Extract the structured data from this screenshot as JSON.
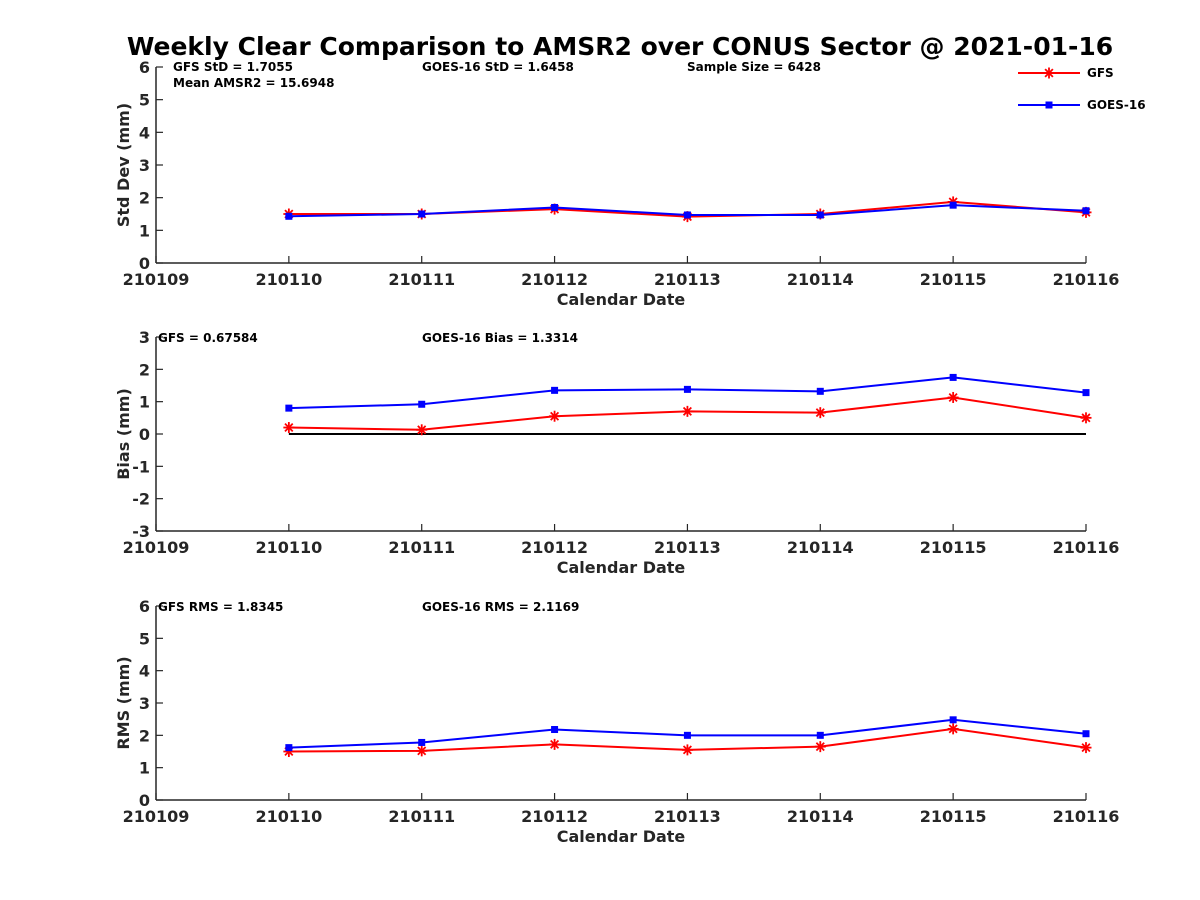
{
  "title": "Weekly Clear Comparison to AMSR2 over CONUS Sector @ 2021-01-16",
  "colors": {
    "gfs": "#ff0000",
    "goes": "#0000ff",
    "zero_line": "#000000"
  },
  "legend": [
    {
      "name": "GFS",
      "marker": "asterisk"
    },
    {
      "name": "GOES-16",
      "marker": "square"
    }
  ],
  "chart_data": [
    {
      "type": "line",
      "xlabel": "Calendar Date",
      "ylabel": "Std Dev (mm)",
      "ylim": [
        0,
        6
      ],
      "yticks": [
        "0",
        "1",
        "2",
        "3",
        "4",
        "5",
        "6"
      ],
      "xticks": [
        "210109",
        "210110",
        "210111",
        "210112",
        "210113",
        "210114",
        "210115",
        "210116"
      ],
      "categories": [
        "210110",
        "210111",
        "210112",
        "210113",
        "210114",
        "210115",
        "210116"
      ],
      "series": [
        {
          "name": "GFS",
          "values": [
            1.5,
            1.5,
            1.65,
            1.42,
            1.5,
            1.87,
            1.55
          ]
        },
        {
          "name": "GOES-16",
          "values": [
            1.43,
            1.5,
            1.7,
            1.47,
            1.47,
            1.77,
            1.6
          ]
        }
      ],
      "annotations": [
        "GFS StD = 1.7055",
        "Mean AMSR2 = 15.6948",
        "GOES-16 StD = 1.6458",
        "Sample Size = 6428"
      ]
    },
    {
      "type": "line",
      "xlabel": "Calendar Date",
      "ylabel": "Bias (mm)",
      "ylim": [
        -3,
        3
      ],
      "yticks": [
        "-3",
        "-2",
        "-1",
        "0",
        "1",
        "2",
        "3"
      ],
      "xticks": [
        "210109",
        "210110",
        "210111",
        "210112",
        "210113",
        "210114",
        "210115",
        "210116"
      ],
      "categories": [
        "210110",
        "210111",
        "210112",
        "210113",
        "210114",
        "210115",
        "210116"
      ],
      "reference_line": 0,
      "series": [
        {
          "name": "GFS",
          "values": [
            0.2,
            0.13,
            0.55,
            0.7,
            0.66,
            1.13,
            0.5
          ]
        },
        {
          "name": "GOES-16",
          "values": [
            0.8,
            0.92,
            1.35,
            1.38,
            1.32,
            1.75,
            1.28
          ]
        }
      ],
      "annotations": [
        "GFS = 0.67584",
        "GOES-16 Bias  = 1.3314"
      ]
    },
    {
      "type": "line",
      "xlabel": "Calendar Date",
      "ylabel": "RMS (mm)",
      "ylim": [
        0,
        6
      ],
      "yticks": [
        "0",
        "1",
        "2",
        "3",
        "4",
        "5",
        "6"
      ],
      "xticks": [
        "210109",
        "210110",
        "210111",
        "210112",
        "210113",
        "210114",
        "210115",
        "210116"
      ],
      "categories": [
        "210110",
        "210111",
        "210112",
        "210113",
        "210114",
        "210115",
        "210116"
      ],
      "series": [
        {
          "name": "GFS",
          "values": [
            1.5,
            1.52,
            1.72,
            1.55,
            1.65,
            2.2,
            1.62
          ]
        },
        {
          "name": "GOES-16",
          "values": [
            1.62,
            1.78,
            2.18,
            2.0,
            2.0,
            2.48,
            2.05
          ]
        }
      ],
      "annotations": [
        "GFS RMS = 1.8345",
        "GOES-16 RMS = 2.1169"
      ]
    }
  ]
}
